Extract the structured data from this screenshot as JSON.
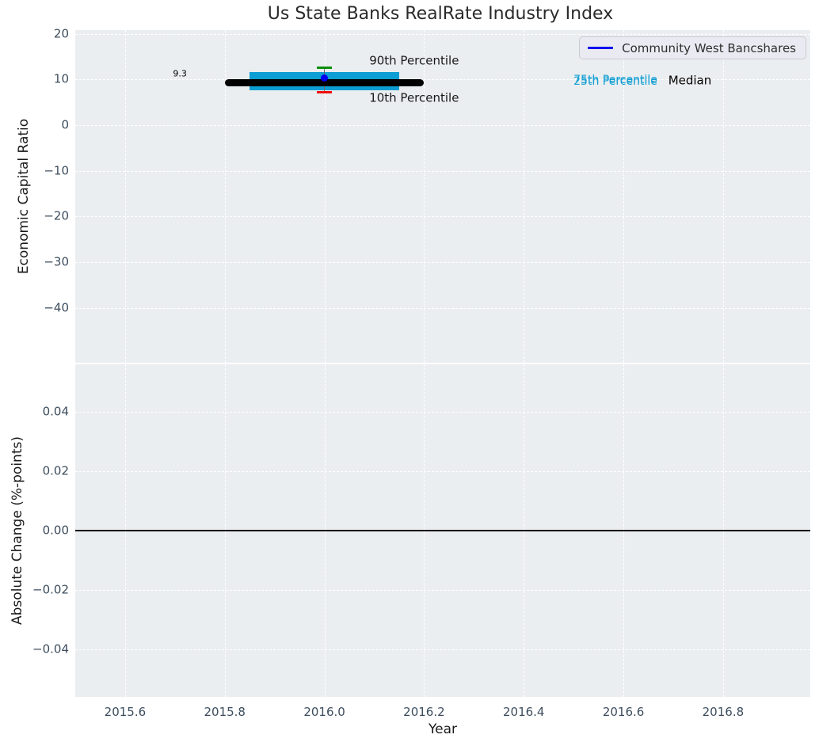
{
  "chart_data": {
    "type": "box-timeseries",
    "title": "Us State Banks RealRate Industry Index",
    "xlabel": "Year",
    "xlim": [
      2015.5,
      2016.975
    ],
    "grid": "white-dashed",
    "legend_position": "upper right",
    "xticks": [
      {
        "value": 2015.6,
        "label": "2015.6"
      },
      {
        "value": 2015.8,
        "label": "2015.8"
      },
      {
        "value": 2016.0,
        "label": "2016.0"
      },
      {
        "value": 2016.2,
        "label": "2016.2"
      },
      {
        "value": 2016.4,
        "label": "2016.4"
      },
      {
        "value": 2016.6,
        "label": "2016.6"
      },
      {
        "value": 2016.8,
        "label": "2016.8"
      }
    ],
    "series": [
      {
        "name": "Community West Bancshares",
        "color": "#0000ee",
        "x": 2016.0,
        "value": 10.3
      }
    ],
    "panels": [
      {
        "ylabel": "Economic Capital Ratio",
        "ylim": [
          -52,
          20.8
        ],
        "yticks": [
          {
            "value": 20,
            "label": "20"
          },
          {
            "value": 10,
            "label": "10"
          },
          {
            "value": 0,
            "label": "0"
          },
          {
            "value": -10,
            "label": "−10"
          },
          {
            "value": -20,
            "label": "−20"
          },
          {
            "value": -30,
            "label": "−30"
          },
          {
            "value": -40,
            "label": "−40"
          }
        ],
        "industry_stats": {
          "year": 2016.0,
          "median": 9.3,
          "p10": 7.2,
          "p25": 7.7,
          "p75": 11.6,
          "p90": 12.5,
          "median_line_span": [
            2015.8,
            2016.2
          ],
          "iqr_band_span": [
            2015.85,
            2016.15
          ],
          "band_color": "#0d9ed3",
          "median_color": "#000000",
          "p90_cap_color": "#0a8f0a",
          "p10_cap_color": "#f40f0f",
          "whisker_color": "#666666"
        },
        "annotations": [
          {
            "text": "9.3",
            "x": 2015.71,
            "y": 11.2,
            "size": 11,
            "color": "#000000",
            "anchor": "middle",
            "name": "median-value-label"
          },
          {
            "text": "90th Percentile",
            "x": 2016.09,
            "y": 14.0,
            "size": 15,
            "color": "#1a1a1a",
            "anchor": "left",
            "name": "p90-label"
          },
          {
            "text": "10th Percentile",
            "x": 2016.09,
            "y": 5.9,
            "size": 15,
            "color": "#1a1a1a",
            "anchor": "left",
            "name": "p10-label"
          },
          {
            "text": "75th Percentile",
            "x": 2016.5,
            "y": 9.95,
            "size": 14,
            "color": "#14a0d4",
            "anchor": "left",
            "name": "p75-label"
          },
          {
            "text": "25th Percentile",
            "x": 2016.5,
            "y": 9.55,
            "size": 14,
            "color": "#14a0d4",
            "anchor": "left",
            "name": "p25-label"
          },
          {
            "text": "Median",
            "x": 2016.69,
            "y": 9.75,
            "size": 15,
            "color": "#000000",
            "anchor": "left",
            "name": "median-label"
          }
        ]
      },
      {
        "ylabel": "Absolute Change (%-points)",
        "ylim": [
          -0.056,
          0.056
        ],
        "yticks": [
          {
            "value": 0.04,
            "label": "0.04"
          },
          {
            "value": 0.02,
            "label": "0.02"
          },
          {
            "value": 0.0,
            "label": "0.00"
          },
          {
            "value": -0.02,
            "label": "−0.02"
          },
          {
            "value": -0.04,
            "label": "−0.04"
          }
        ],
        "zero_line": 0.0,
        "zero_line_color": "#000000",
        "values": []
      }
    ],
    "colors": {
      "plot_background": "#ebeef0",
      "figure_background": "#ffffff",
      "tick_label": "#3d4d5e",
      "gridline": "#ffffff"
    }
  }
}
